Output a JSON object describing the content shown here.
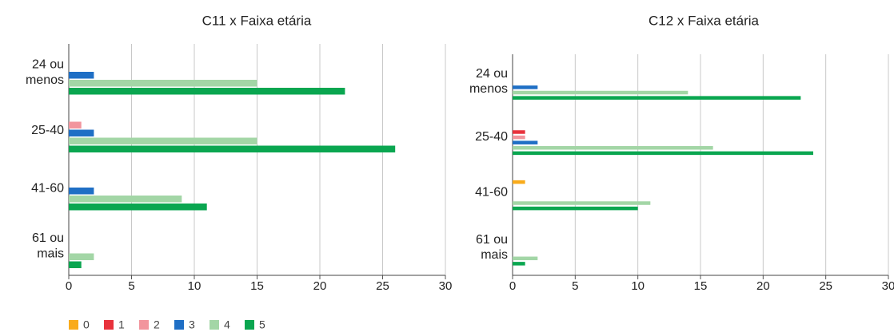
{
  "chart_data": [
    {
      "type": "bar",
      "orientation": "horizontal",
      "title": "C11 x Faixa etária",
      "categories": [
        "24 ou\nmenos",
        "25-40",
        "41-60",
        "61 ou\nmais"
      ],
      "series": [
        {
          "name": "0",
          "color": "#f9ab1b",
          "values": [
            0,
            0,
            0,
            0
          ]
        },
        {
          "name": "1",
          "color": "#e8323c",
          "values": [
            0,
            0,
            0,
            0
          ]
        },
        {
          "name": "2",
          "color": "#f2959d",
          "values": [
            0,
            1,
            0,
            0
          ]
        },
        {
          "name": "3",
          "color": "#1f6fc5",
          "values": [
            2,
            2,
            2,
            0
          ]
        },
        {
          "name": "4",
          "color": "#a3d6a6",
          "values": [
            15,
            15,
            9,
            2
          ]
        },
        {
          "name": "5",
          "color": "#0aa650",
          "values": [
            22,
            26,
            11,
            1
          ]
        }
      ],
      "xlim": [
        0,
        30
      ],
      "xticks": [
        0,
        5,
        10,
        15,
        20,
        25,
        30
      ],
      "grid": true
    },
    {
      "type": "bar",
      "orientation": "horizontal",
      "title": "C12 x Faixa etária",
      "categories": [
        "24 ou\nmenos",
        "25-40",
        "41-60",
        "61 ou\nmais"
      ],
      "series": [
        {
          "name": "0",
          "color": "#f9ab1b",
          "values": [
            0,
            0,
            1,
            0
          ]
        },
        {
          "name": "1",
          "color": "#e8323c",
          "values": [
            0,
            1,
            0,
            0
          ]
        },
        {
          "name": "2",
          "color": "#f2959d",
          "values": [
            0,
            1,
            0,
            0
          ]
        },
        {
          "name": "3",
          "color": "#1f6fc5",
          "values": [
            2,
            2,
            0,
            0
          ]
        },
        {
          "name": "4",
          "color": "#a3d6a6",
          "values": [
            14,
            16,
            11,
            2
          ]
        },
        {
          "name": "5",
          "color": "#0aa650",
          "values": [
            23,
            24,
            10,
            1
          ]
        }
      ],
      "xlim": [
        0,
        30
      ],
      "xticks": [
        0,
        5,
        10,
        15,
        20,
        25,
        30
      ],
      "grid": true
    }
  ]
}
